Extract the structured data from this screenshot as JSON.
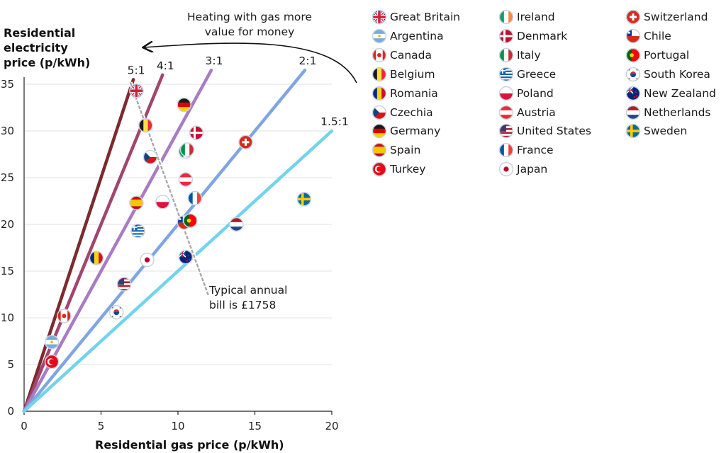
{
  "chart_data": {
    "type": "scatter",
    "xlabel": "Residential gas price (p/kWh)",
    "ylabel": "Residential electricity price (p/kWh)",
    "xlim": [
      0,
      20
    ],
    "ylim": [
      0,
      35
    ],
    "xticks": [
      0,
      5,
      10,
      15,
      20
    ],
    "yticks": [
      0,
      5,
      10,
      15,
      20,
      25,
      30,
      35
    ],
    "grid": "horizontal",
    "ratio_lines": [
      {
        "label": "5:1",
        "ratio": 5,
        "color": "#7b2a2e"
      },
      {
        "label": "4:1",
        "ratio": 4,
        "color": "#a0466e"
      },
      {
        "label": "3:1",
        "ratio": 3,
        "color": "#a77cc3"
      },
      {
        "label": "2:1",
        "ratio": 2,
        "color": "#7fa5e3"
      },
      {
        "label": "1.5:1",
        "ratio": 1.5,
        "color": "#72d3ec"
      }
    ],
    "bill_line": {
      "from": [
        6.9,
        35.2
      ],
      "to": [
        12.0,
        12.3
      ],
      "color": "#a8a8a8"
    },
    "annotations": {
      "arrow_text": [
        "Heating with gas more",
        "value for money"
      ],
      "bill_text": [
        "Typical annual",
        "bill is £1758"
      ]
    },
    "series": [
      {
        "name": "Great Britain",
        "x": 7.3,
        "y": 34.3,
        "flag": "gb"
      },
      {
        "name": "Argentina",
        "x": 1.8,
        "y": 7.4,
        "flag": "ar"
      },
      {
        "name": "Canada",
        "x": 2.6,
        "y": 10.2,
        "flag": "ca"
      },
      {
        "name": "Belgium",
        "x": 7.9,
        "y": 30.6,
        "flag": "be"
      },
      {
        "name": "Romania",
        "x": 4.7,
        "y": 16.4,
        "flag": "ro"
      },
      {
        "name": "Czechia",
        "x": 8.2,
        "y": 27.2,
        "flag": "cz"
      },
      {
        "name": "Germany",
        "x": 10.4,
        "y": 32.8,
        "flag": "de"
      },
      {
        "name": "Spain",
        "x": 7.3,
        "y": 22.3,
        "flag": "es"
      },
      {
        "name": "Turkey",
        "x": 1.8,
        "y": 5.3,
        "flag": "tr"
      },
      {
        "name": "Ireland",
        "x": 10.5,
        "y": 27.8,
        "flag": "ie"
      },
      {
        "name": "Denmark",
        "x": 11.2,
        "y": 29.8,
        "flag": "dk"
      },
      {
        "name": "Italy",
        "x": 10.6,
        "y": 28.0,
        "flag": "it"
      },
      {
        "name": "Greece",
        "x": 7.4,
        "y": 19.3,
        "flag": "gr"
      },
      {
        "name": "Poland",
        "x": 9.0,
        "y": 22.4,
        "flag": "pl"
      },
      {
        "name": "Austria",
        "x": 10.5,
        "y": 24.8,
        "flag": "at"
      },
      {
        "name": "United States",
        "x": 6.5,
        "y": 13.6,
        "flag": "us"
      },
      {
        "name": "France",
        "x": 11.1,
        "y": 22.8,
        "flag": "fr"
      },
      {
        "name": "Japan",
        "x": 8.0,
        "y": 16.2,
        "flag": "jp"
      },
      {
        "name": "Switzerland",
        "x": 14.4,
        "y": 28.8,
        "flag": "ch"
      },
      {
        "name": "Chile",
        "x": 10.4,
        "y": 20.2,
        "flag": "cl"
      },
      {
        "name": "Portugal",
        "x": 10.8,
        "y": 20.4,
        "flag": "pt"
      },
      {
        "name": "South Korea",
        "x": 6.0,
        "y": 10.6,
        "flag": "kr"
      },
      {
        "name": "New Zealand",
        "x": 10.5,
        "y": 16.5,
        "flag": "nz"
      },
      {
        "name": "Netherlands",
        "x": 13.8,
        "y": 20.0,
        "flag": "nl"
      },
      {
        "name": "Sweden",
        "x": 18.2,
        "y": 22.7,
        "flag": "se"
      }
    ]
  },
  "legend": {
    "columns": [
      [
        "Great Britain",
        "Argentina",
        "Canada",
        "Belgium",
        "Romania",
        "Czechia",
        "Germany",
        "Spain",
        "Turkey"
      ],
      [
        "Ireland",
        "Denmark",
        "Italy",
        "Greece",
        "Poland",
        "Austria",
        "United States",
        "France",
        "Japan"
      ],
      [
        "Switzerland",
        "Chile",
        "Portugal",
        "South Korea",
        "New Zealand",
        "Netherlands",
        "Sweden"
      ]
    ]
  },
  "labels": {
    "ylabel_lines": [
      "Residential",
      "electricity",
      "price (p/kWh)"
    ],
    "xlabel": "Residential gas price (p/kWh)"
  }
}
